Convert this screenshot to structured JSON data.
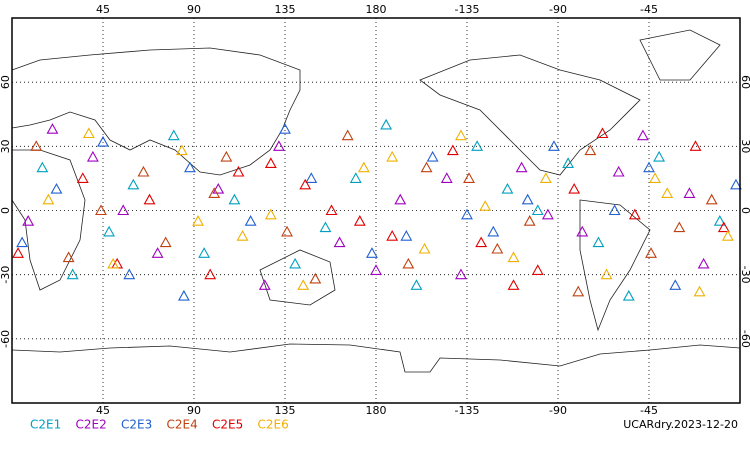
{
  "chart_data": {
    "type": "scatter",
    "xlim": [
      0,
      360
    ],
    "ylim": [
      -90,
      90
    ],
    "xticks": [
      45,
      90,
      135,
      180,
      {
        "value": 225,
        "label": "-135"
      },
      {
        "value": 270,
        "label": "-90"
      },
      {
        "value": 315,
        "label": "-45"
      }
    ],
    "yticks": [
      60,
      30,
      0,
      -30,
      -60
    ],
    "grid": true,
    "annotation": "UCARdry.2023-12-20",
    "series": [
      {
        "name": "C2E1",
        "color": "#00a0c0",
        "x": [
          15,
          48,
          80,
          110,
          140,
          170,
          200,
          230,
          260,
          290,
          320,
          350,
          30,
          95,
          185,
          245,
          305,
          60,
          155,
          275
        ],
        "y": [
          20,
          -10,
          35,
          5,
          -25,
          15,
          -35,
          30,
          0,
          -15,
          25,
          -5,
          -30,
          -20,
          40,
          10,
          -40,
          12,
          -8,
          22
        ]
      },
      {
        "name": "C2E2",
        "color": "#a000c0",
        "x": [
          8,
          40,
          72,
          102,
          132,
          162,
          192,
          222,
          252,
          282,
          312,
          342,
          55,
          125,
          215,
          335,
          20,
          180,
          265,
          300
        ],
        "y": [
          -5,
          25,
          -20,
          10,
          30,
          -15,
          5,
          -30,
          20,
          -10,
          35,
          -25,
          0,
          -35,
          15,
          8,
          38,
          -28,
          -2,
          18
        ]
      },
      {
        "name": "C2E3",
        "color": "#2060d0",
        "x": [
          22,
          58,
          88,
          118,
          148,
          178,
          208,
          238,
          268,
          298,
          328,
          358,
          5,
          135,
          225,
          315,
          85,
          195,
          255,
          45
        ],
        "y": [
          10,
          -30,
          20,
          -5,
          15,
          -20,
          25,
          -10,
          30,
          0,
          -35,
          12,
          -15,
          38,
          -2,
          20,
          -40,
          -12,
          5,
          32
        ]
      },
      {
        "name": "C2E4",
        "color": "#c04010",
        "x": [
          12,
          44,
          76,
          106,
          136,
          166,
          196,
          226,
          256,
          286,
          316,
          346,
          65,
          150,
          240,
          330,
          100,
          205,
          280,
          28
        ],
        "y": [
          30,
          0,
          -15,
          25,
          -10,
          35,
          -25,
          15,
          -5,
          28,
          -20,
          5,
          18,
          -32,
          -18,
          -8,
          8,
          20,
          -38,
          -22
        ]
      },
      {
        "name": "C2E5",
        "color": "#e00000",
        "x": [
          3,
          35,
          68,
          98,
          128,
          158,
          188,
          218,
          248,
          278,
          308,
          338,
          52,
          112,
          172,
          232,
          292,
          352,
          145,
          260
        ],
        "y": [
          -20,
          15,
          5,
          -30,
          22,
          0,
          -12,
          28,
          -35,
          10,
          -2,
          30,
          -25,
          18,
          -5,
          -15,
          36,
          -8,
          12,
          -28
        ]
      },
      {
        "name": "C2E6",
        "color": "#f0b000",
        "x": [
          18,
          50,
          84,
          114,
          144,
          174,
          204,
          234,
          264,
          294,
          324,
          354,
          38,
          92,
          188,
          248,
          318,
          128,
          222,
          340
        ],
        "y": [
          5,
          -25,
          28,
          -12,
          -35,
          20,
          -18,
          2,
          15,
          -30,
          8,
          -12,
          36,
          -5,
          25,
          -22,
          15,
          -2,
          35,
          -38
        ]
      }
    ]
  }
}
